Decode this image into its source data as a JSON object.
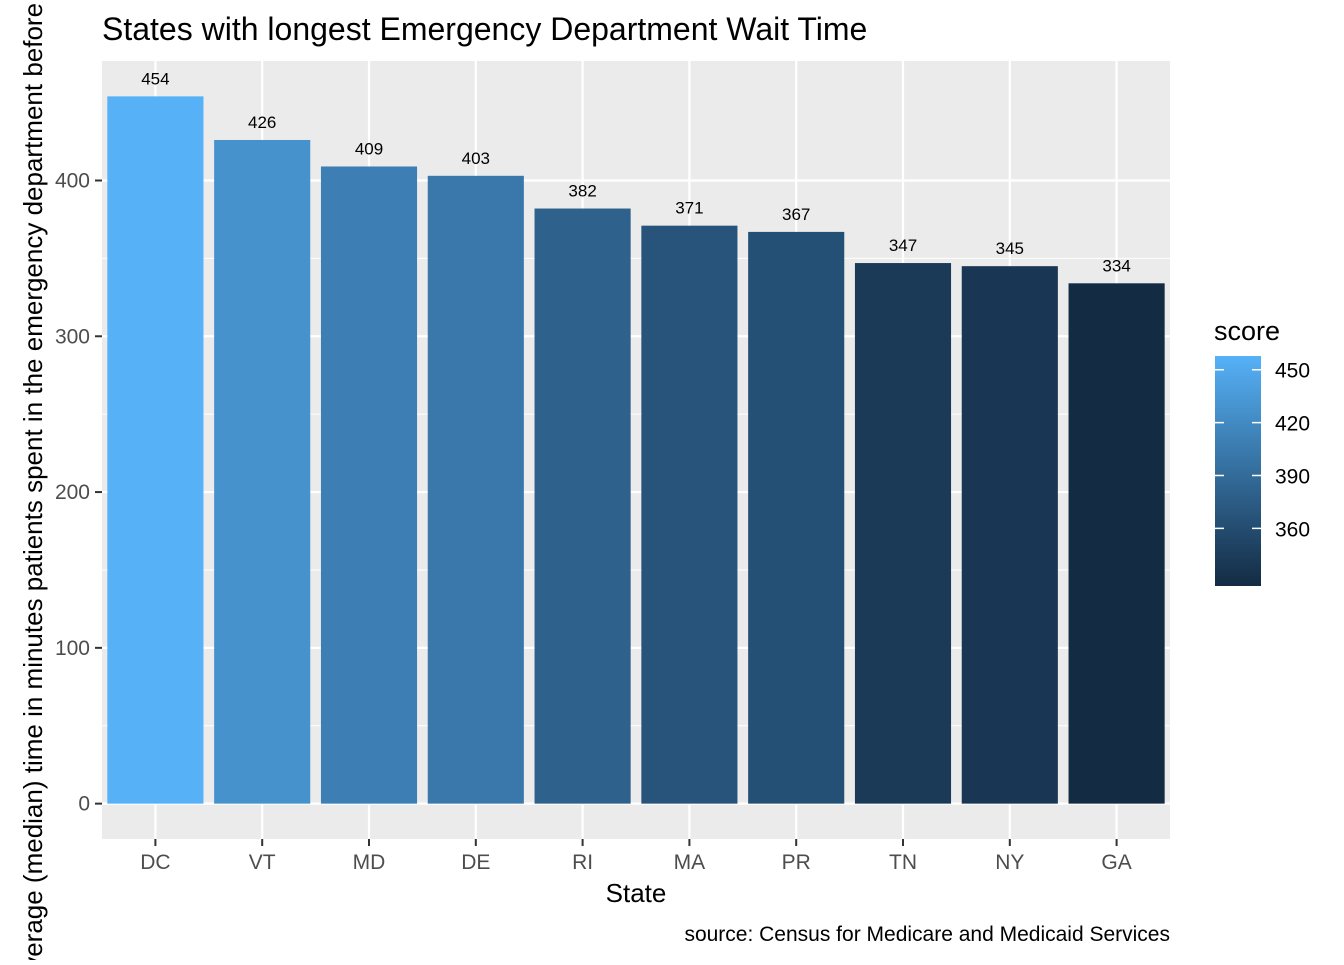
{
  "chart_data": {
    "type": "bar",
    "title": "States with longest Emergency Department Wait Time",
    "xlabel": "State",
    "ylabel": "Average (median) time in minutes patients spent in the emergency department before leaving",
    "caption": "source: Census for Medicare and Medicaid Services",
    "categories": [
      "DC",
      "VT",
      "MD",
      "DE",
      "RI",
      "MA",
      "PR",
      "TN",
      "NY",
      "GA"
    ],
    "values": [
      454,
      426,
      409,
      403,
      382,
      371,
      367,
      347,
      345,
      334
    ],
    "ylim": [
      -22.7,
      476.7
    ],
    "yticks": [
      0,
      100,
      200,
      300,
      400
    ],
    "grid": true,
    "legend": {
      "title": "score",
      "position": "right",
      "ticks": [
        450,
        420,
        390,
        360
      ],
      "min": 334,
      "max": 454,
      "color_low": "#132B43",
      "color_high": "#56B1F7"
    },
    "colors": {
      "panel_background": "#EBEBEB",
      "grid_major": "#FFFFFF",
      "axis_text": "#4D4D4D"
    }
  }
}
